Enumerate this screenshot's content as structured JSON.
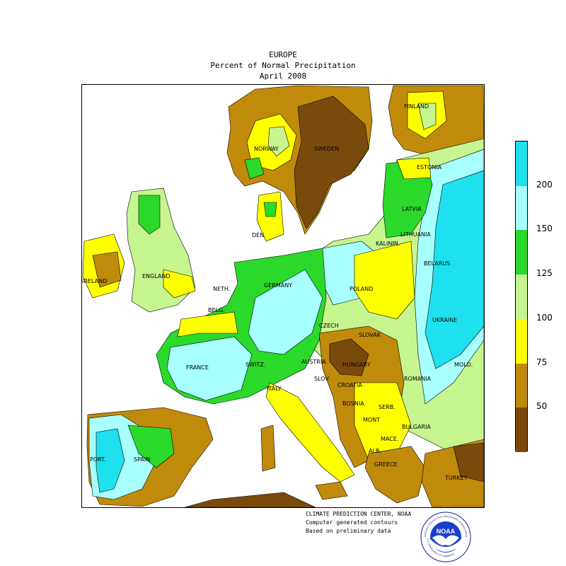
{
  "header": {
    "title": "EUROPE",
    "subtitle": "Percent of Normal Precipitation",
    "period": "April 2008"
  },
  "map": {
    "country_labels": [
      "FINLAND",
      "NORWAY",
      "SWEDEN",
      "ESTONIA",
      "LATVIA",
      "LITHUANIA",
      "KALININ.",
      "BELARUS",
      "DEN",
      "IRELAND",
      "ENGLAND",
      "GERMANY",
      "NETH.",
      "BELG.",
      "POLAND",
      "UKRAINE",
      "CZECH",
      "SLOVAK",
      "FRANCE",
      "SWITZ.",
      "AUSTRIA",
      "HUNGARY",
      "SLOV.",
      "CROATIA",
      "ROMANIA",
      "MOLD.",
      "ITALY",
      "BOSNIA",
      "SERB.",
      "BULGARIA",
      "MONT",
      "MACE.",
      "ALB.",
      "GREECE",
      "TURKEY",
      "PORT.",
      "SPAIN"
    ],
    "colors": {
      "below_50": "#7a4a0d",
      "50_75": "#c08a0a",
      "75_100": "#ffff00",
      "100_125": "#c6f58f",
      "125_150": "#2ad92a",
      "150_200": "#a8ffff",
      "above_200": "#1ee0ee",
      "water": "#ffffff",
      "border": "#000000"
    }
  },
  "legend": {
    "bins": [
      {
        "range": "above 200",
        "color": "#1ee0ee"
      },
      {
        "range": "150-200",
        "color": "#a8ffff"
      },
      {
        "range": "125-150",
        "color": "#2ad92a"
      },
      {
        "range": "100-125",
        "color": "#c6f58f"
      },
      {
        "range": "75-100",
        "color": "#ffff00"
      },
      {
        "range": "50-75",
        "color": "#c08a0a"
      },
      {
        "range": "below 50",
        "color": "#7a4a0d"
      }
    ],
    "tick_labels": [
      "200",
      "150",
      "125",
      "100",
      "75",
      "50"
    ]
  },
  "footer": {
    "line1": "CLIMATE PREDICTION CENTER, NOAA",
    "line2": "Computer generated contours",
    "line3": "Based on preliminary data",
    "logo_text": "NOAA",
    "logo_ring_top": "NATIONAL OCEANIC AND ATMOSPHERIC ADMINISTRATION",
    "logo_ring_bottom": "U.S. DEPARTMENT OF COMMERCE"
  }
}
